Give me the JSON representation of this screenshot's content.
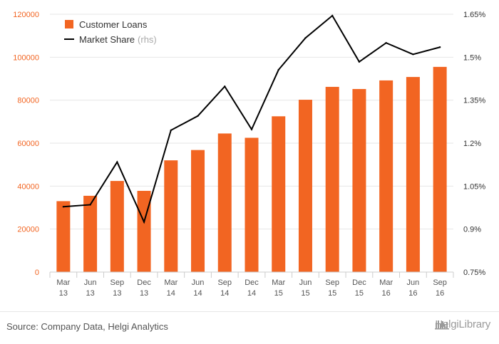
{
  "chart_data": {
    "type": "bar+line",
    "categories": [
      [
        "Mar",
        "13"
      ],
      [
        "Jun",
        "13"
      ],
      [
        "Sep",
        "13"
      ],
      [
        "Dec",
        "13"
      ],
      [
        "Mar",
        "14"
      ],
      [
        "Jun",
        "14"
      ],
      [
        "Sep",
        "14"
      ],
      [
        "Dec",
        "14"
      ],
      [
        "Mar",
        "15"
      ],
      [
        "Jun",
        "15"
      ],
      [
        "Sep",
        "15"
      ],
      [
        "Dec",
        "15"
      ],
      [
        "Mar",
        "16"
      ],
      [
        "Jun",
        "16"
      ],
      [
        "Sep",
        "16"
      ]
    ],
    "series": [
      {
        "name": "Customer Loans",
        "type": "bar",
        "axis": "left",
        "color": "#f26522",
        "values": [
          33000,
          35500,
          42400,
          37800,
          52000,
          56800,
          64500,
          62500,
          72500,
          80200,
          86200,
          85200,
          89200,
          90800,
          95500
        ]
      },
      {
        "name": "Market Share",
        "name_suffix": "(rhs)",
        "type": "line",
        "axis": "right",
        "color": "#000000",
        "values": [
          0.978,
          0.985,
          1.134,
          0.925,
          1.245,
          1.295,
          1.398,
          1.248,
          1.456,
          1.567,
          1.645,
          1.484,
          1.55,
          1.51,
          1.535
        ]
      }
    ],
    "left_axis": {
      "min": 0,
      "max": 120000,
      "ticks": [
        0,
        20000,
        40000,
        60000,
        80000,
        100000,
        120000
      ],
      "tick_labels": [
        "0",
        "20000",
        "40000",
        "60000",
        "80000",
        "100000",
        "120000"
      ]
    },
    "right_axis": {
      "min": 0.75,
      "max": 1.65,
      "ticks": [
        0.75,
        0.9,
        1.05,
        1.2,
        1.35,
        1.5,
        1.65
      ],
      "tick_labels": [
        "0.75%",
        "0.9%",
        "1.05%",
        "1.2%",
        "1.35%",
        "1.5%",
        "1.65%"
      ]
    },
    "grid": true,
    "legend_position": "top-left"
  },
  "footer": {
    "source": "Source: Company Data, Helgi Analytics",
    "logo_text": "HelgiLibrary"
  },
  "colors": {
    "bar": "#f26522",
    "line": "#000000",
    "grid": "#e6e6e6",
    "left_ticks": "#f26522"
  }
}
